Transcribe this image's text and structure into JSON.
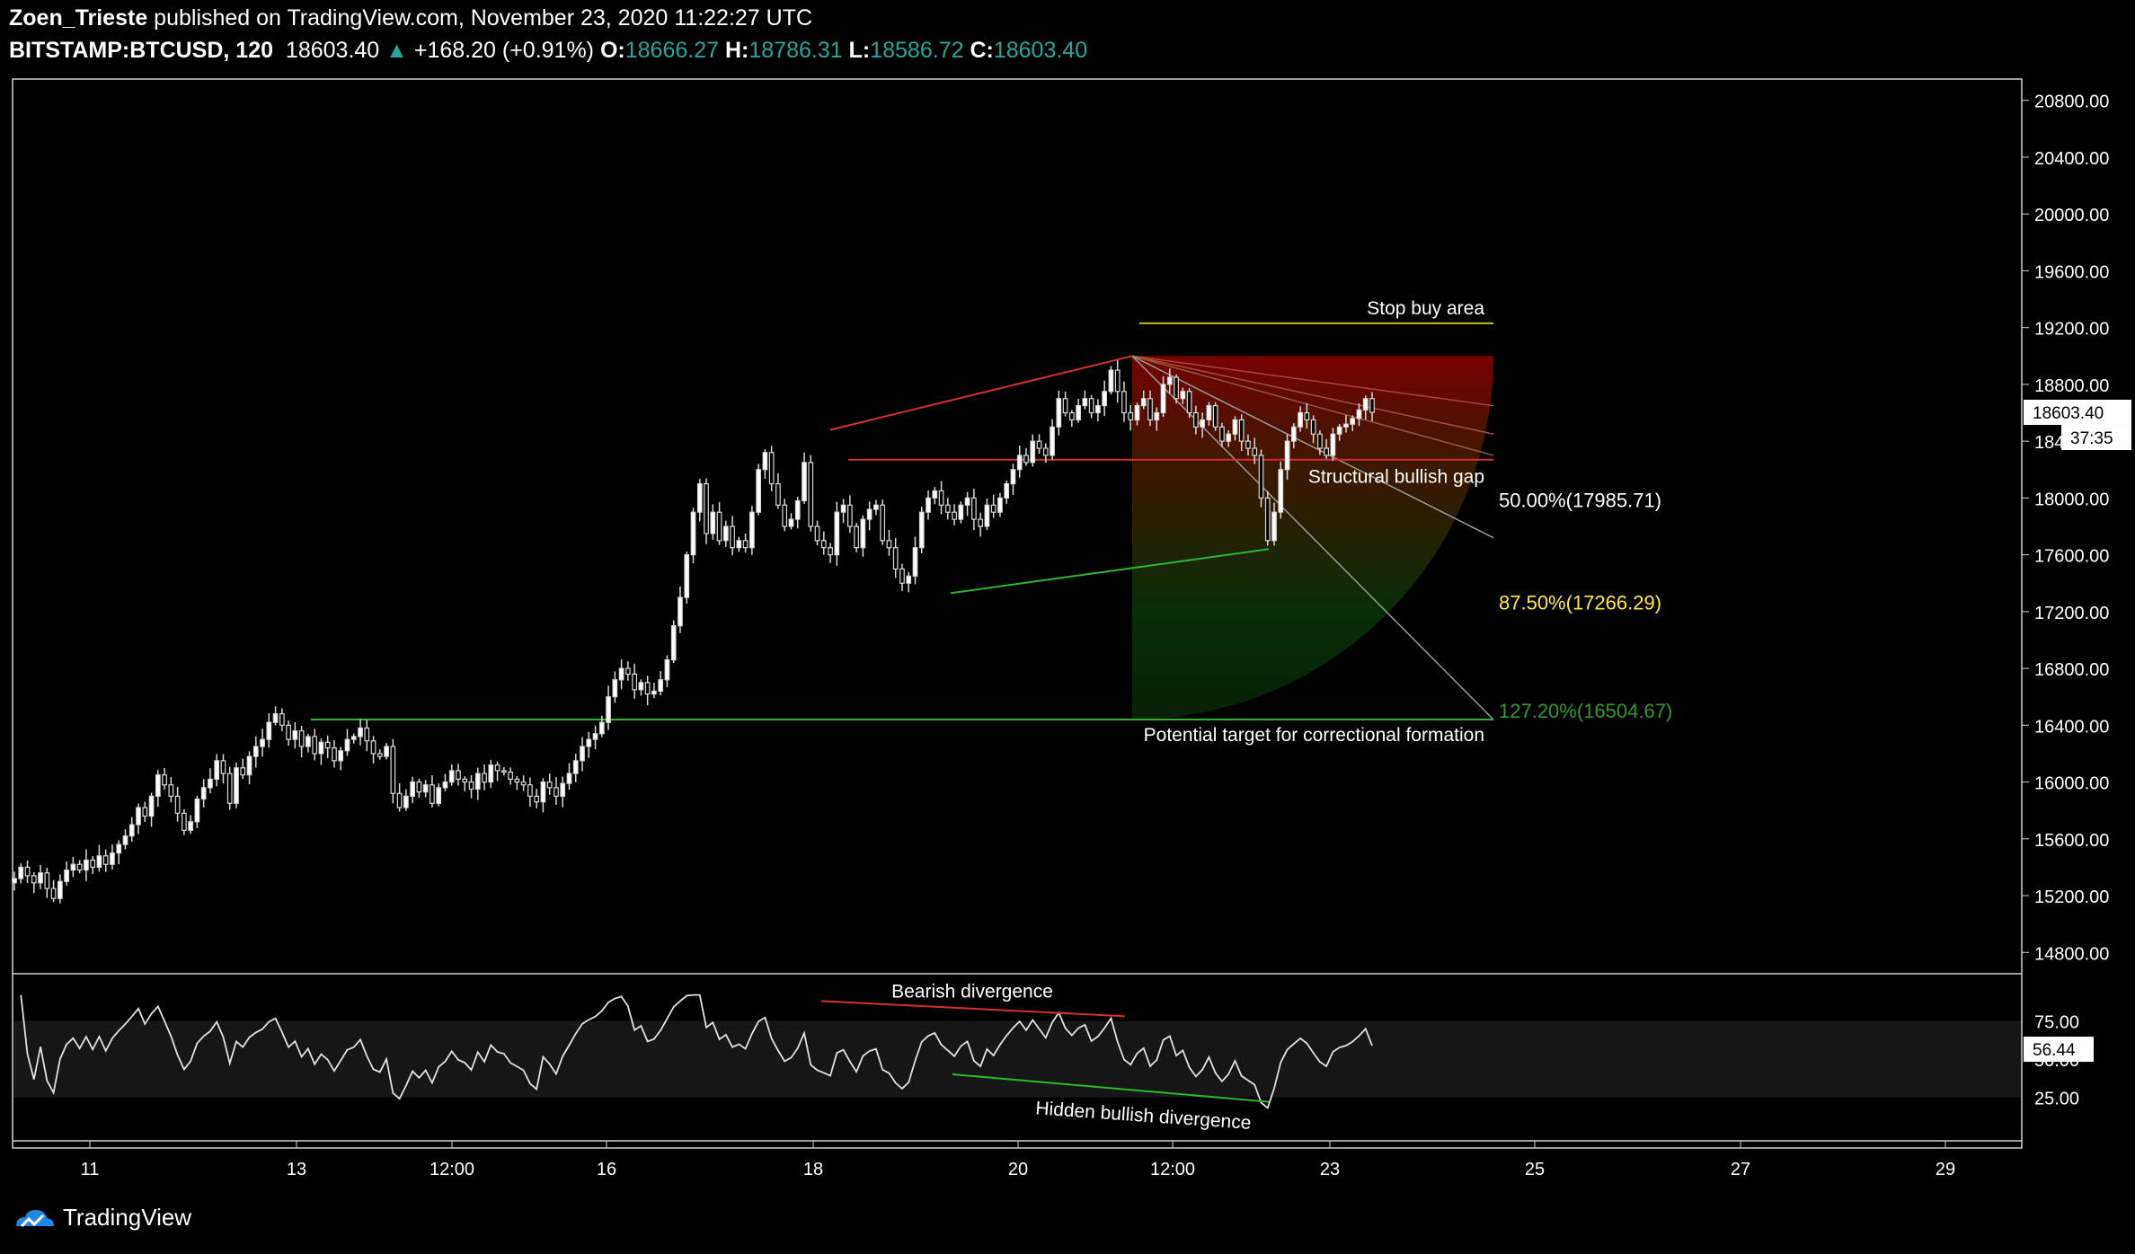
{
  "header": {
    "author": "Zoen_Trieste",
    "published": " published on TradingView.com, November 23, 2020 11:22:27 UTC",
    "symbol": "BITSTAMP:BTCUSD, 120",
    "last": "18603.40",
    "change": "+168.20 (+0.91%)",
    "o_label": "O:",
    "o": "18666.27",
    "h_label": "H:",
    "h": "18786.31",
    "l_label": "L:",
    "l": "18586.72",
    "c_label": "C:",
    "c": "18603.40"
  },
  "brand": {
    "name": "TradingView"
  },
  "colors": {
    "up": "#26a69a",
    "bg": "#000000",
    "red": "#d32f2f",
    "green": "#2e9a2e",
    "yellow": "#ffeb3b"
  },
  "chart_data": {
    "type": "candlestick",
    "price_axis": {
      "ticks": [
        "20800.00",
        "20400.00",
        "20000.00",
        "19600.00",
        "19200.00",
        "18800.00",
        "18400.00",
        "18000.00",
        "17600.00",
        "17200.00",
        "16800.00",
        "16400.00",
        "16000.00",
        "15600.00",
        "15200.00",
        "14800.00"
      ],
      "range": [
        14650,
        20950
      ]
    },
    "last_price_label": "18603.40",
    "countdown_label": "37:35",
    "time_axis": {
      "ticks": [
        "11",
        "13",
        "12:00",
        "16",
        "18",
        "20",
        "12:00",
        "23",
        "25",
        "27",
        "29"
      ]
    },
    "fib_levels": [
      {
        "label": "50.00%(17985.71)",
        "price": 17985.71,
        "color": "#ffffff"
      },
      {
        "label": "87.50%(17266.29)",
        "price": 17266.29,
        "color": "#ffeb3b"
      },
      {
        "label": "127.20%(16504.67)",
        "price": 16504.67,
        "color": "#2e9a2e"
      }
    ],
    "annotations": [
      {
        "text": "Stop buy area",
        "price": 19230
      },
      {
        "text": "Structural bullish gap",
        "price": 18270
      },
      {
        "text": "Potential target for correctional formation",
        "price": 16440
      },
      {
        "text": "Bearish divergence"
      },
      {
        "text": "Hidden bullish divergence"
      }
    ],
    "rsi": {
      "ticks": [
        "75.00",
        "50.00",
        "25.00"
      ],
      "last_label": "56.44",
      "band": [
        25,
        75
      ]
    },
    "series": [
      {
        "values": [
          15320,
          15400,
          15340,
          15290,
          15360,
          15250,
          15180,
          15300,
          15380,
          15420,
          15380,
          15450,
          15400,
          15480,
          15420,
          15500,
          15560,
          15620,
          15700,
          15820,
          15760,
          15900,
          16050,
          15980,
          15900,
          15780,
          15660,
          15720,
          15880,
          15960,
          16020,
          16150,
          16060,
          15850,
          16100,
          16050,
          16180,
          16250,
          16300,
          16420,
          16480,
          16400,
          16300,
          16360,
          16250,
          16320,
          16200,
          16280,
          16240,
          16150,
          16220,
          16300,
          16320,
          16380,
          16290,
          16200,
          16180,
          16250,
          15920,
          15820,
          15900,
          16000,
          15930,
          15980,
          15850,
          15960,
          16000,
          16080,
          16020,
          16000,
          15950,
          16060,
          16000,
          16120,
          16080,
          16070,
          16020,
          16000,
          15980,
          15900,
          15860,
          16000,
          15960,
          15900,
          15990,
          16060,
          16150,
          16250,
          16300,
          16340,
          16420,
          16600,
          16720,
          16800,
          16760,
          16650,
          16700,
          16620,
          16640,
          16720,
          16860,
          17100,
          17300,
          17600,
          17900,
          18100,
          17750,
          17900,
          17700,
          17800,
          17650,
          17700,
          17650,
          17900,
          18200,
          18320,
          18100,
          17950,
          17800,
          17850,
          17980,
          18250,
          17800,
          17700,
          17650,
          17600,
          17900,
          17950,
          17800,
          17650,
          17850,
          17920,
          17950,
          17700,
          17650,
          17500,
          17400,
          17450,
          17650,
          17900,
          18000,
          18050,
          17950,
          17900,
          17850,
          17950,
          18000,
          17850,
          17800,
          17950,
          17900,
          18000,
          18100,
          18200,
          18300,
          18250,
          18400,
          18350,
          18300,
          18500,
          18700,
          18600,
          18550,
          18650,
          18700,
          18600,
          18650,
          18750,
          18900,
          18750,
          18600,
          18550,
          18650,
          18700,
          18550,
          18600,
          18800,
          18850,
          18700,
          18750,
          18600,
          18500,
          18550,
          18650,
          18500,
          18400,
          18450,
          18550,
          18400,
          18350,
          18300,
          18000,
          17700,
          17900,
          18200,
          18400,
          18500,
          18600,
          18550,
          18450,
          18350,
          18300,
          18450,
          18500,
          18520,
          18560,
          18620,
          18700,
          18603
        ]
      }
    ]
  }
}
